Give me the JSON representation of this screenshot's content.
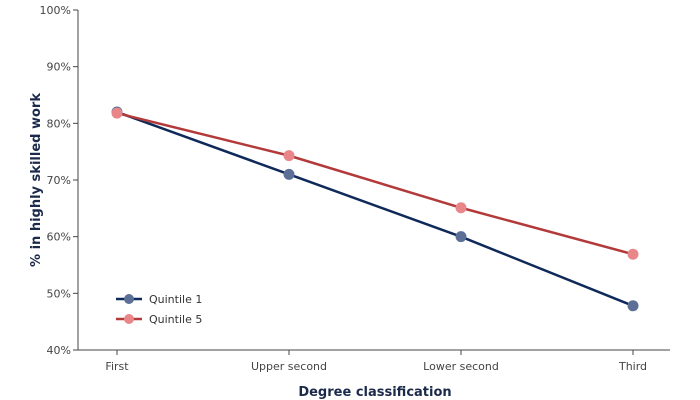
{
  "chart_data": {
    "type": "line",
    "categories": [
      "First",
      "Upper second",
      "Lower second",
      "Third"
    ],
    "series": [
      {
        "name": "Quintile 1",
        "values": [
          82,
          71,
          60,
          47.8
        ],
        "line_color": "#0f2a5a",
        "marker_color": "#5c6f96"
      },
      {
        "name": "Quintile 5",
        "values": [
          81.8,
          74.3,
          65.1,
          56.9
        ],
        "line_color": "#b33a3a",
        "marker_color": "#e8868a"
      }
    ],
    "xlabel": "Degree classification",
    "ylabel": "% in highly skilled work",
    "ylim": [
      40,
      100
    ],
    "yticks": [
      40,
      50,
      60,
      70,
      80,
      90,
      100
    ],
    "ytick_suffix": "%",
    "grid": false,
    "legend_position": "bottom-left"
  }
}
